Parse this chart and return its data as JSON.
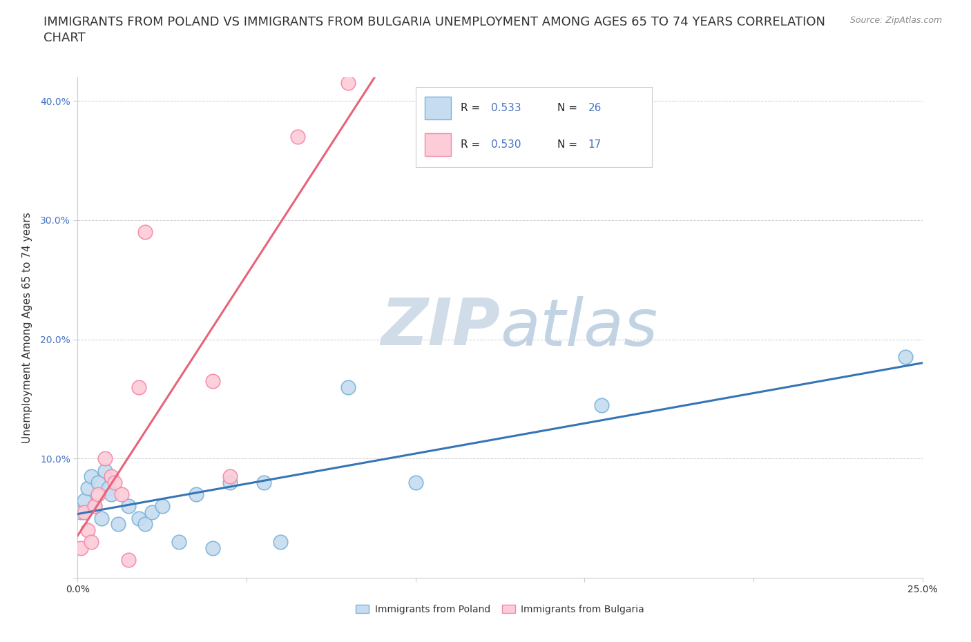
{
  "title_line1": "IMMIGRANTS FROM POLAND VS IMMIGRANTS FROM BULGARIA UNEMPLOYMENT AMONG AGES 65 TO 74 YEARS CORRELATION",
  "title_line2": "CHART",
  "source": "Source: ZipAtlas.com",
  "ylabel": "Unemployment Among Ages 65 to 74 years",
  "xlim": [
    0.0,
    0.25
  ],
  "ylim": [
    0.0,
    0.42
  ],
  "xticks": [
    0.0,
    0.05,
    0.1,
    0.15,
    0.2,
    0.25
  ],
  "yticks": [
    0.0,
    0.1,
    0.2,
    0.3,
    0.4
  ],
  "poland_fill_color": "#c6dcf0",
  "poland_edge_color": "#7ab3d9",
  "bulgaria_fill_color": "#fcccd8",
  "bulgaria_edge_color": "#f589aa",
  "poland_line_color": "#3575b5",
  "bulgaria_line_color": "#e8637a",
  "R_poland": 0.533,
  "N_poland": 26,
  "R_bulgaria": 0.53,
  "N_bulgaria": 17,
  "poland_x": [
    0.001,
    0.002,
    0.003,
    0.004,
    0.005,
    0.006,
    0.007,
    0.008,
    0.009,
    0.01,
    0.012,
    0.015,
    0.018,
    0.02,
    0.022,
    0.025,
    0.03,
    0.035,
    0.04,
    0.045,
    0.055,
    0.06,
    0.08,
    0.1,
    0.155,
    0.245
  ],
  "poland_y": [
    0.055,
    0.065,
    0.075,
    0.085,
    0.06,
    0.08,
    0.05,
    0.09,
    0.075,
    0.07,
    0.045,
    0.06,
    0.05,
    0.045,
    0.055,
    0.06,
    0.03,
    0.07,
    0.025,
    0.08,
    0.08,
    0.03,
    0.16,
    0.08,
    0.145,
    0.185
  ],
  "bulgaria_x": [
    0.001,
    0.002,
    0.003,
    0.004,
    0.005,
    0.006,
    0.008,
    0.01,
    0.011,
    0.013,
    0.015,
    0.018,
    0.02,
    0.04,
    0.045,
    0.065,
    0.08
  ],
  "bulgaria_y": [
    0.025,
    0.055,
    0.04,
    0.03,
    0.06,
    0.07,
    0.1,
    0.085,
    0.08,
    0.07,
    0.015,
    0.16,
    0.29,
    0.165,
    0.085,
    0.37,
    0.415
  ],
  "watermark_zip": "ZIP",
  "watermark_atlas": "atlas",
  "watermark_color": "#d0dce8",
  "background_color": "#ffffff",
  "grid_color": "#cccccc",
  "text_color": "#333333",
  "tick_color_y": "#4472c4",
  "tick_color_x": "#333333",
  "legend_blue": "#4472c4",
  "title_fontsize": 13,
  "ylabel_fontsize": 11,
  "tick_fontsize": 10,
  "source_fontsize": 9
}
